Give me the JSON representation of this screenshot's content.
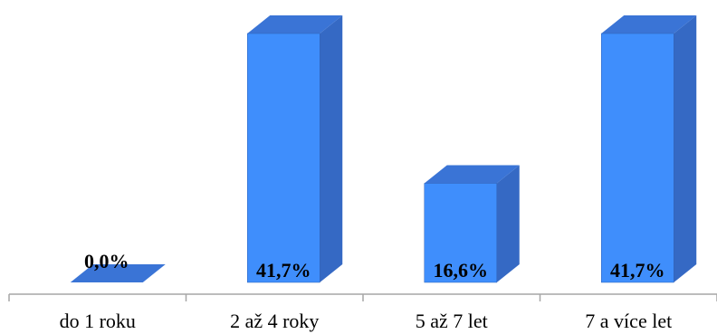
{
  "chart_data": {
    "type": "bar",
    "categories": [
      "do 1 roku",
      "2 až 4 roky",
      "5 až 7 let",
      "7 a více let"
    ],
    "values": [
      0.0,
      41.7,
      16.6,
      41.7
    ],
    "data_labels": [
      "0,0%",
      "41,7%",
      "16,6%",
      "41,7%"
    ],
    "title": "",
    "xlabel": "",
    "ylabel": "",
    "ylim": [
      0,
      41.7
    ],
    "grid": false,
    "legend": "none",
    "style": "3d-column"
  },
  "colors": {
    "bar_front": "#3f8efc",
    "bar_top": "#3a74d6",
    "bar_side": "#3569c4",
    "bar_stroke": "#2f62b8",
    "axis": "#a6a6a6",
    "text": "#000000"
  }
}
